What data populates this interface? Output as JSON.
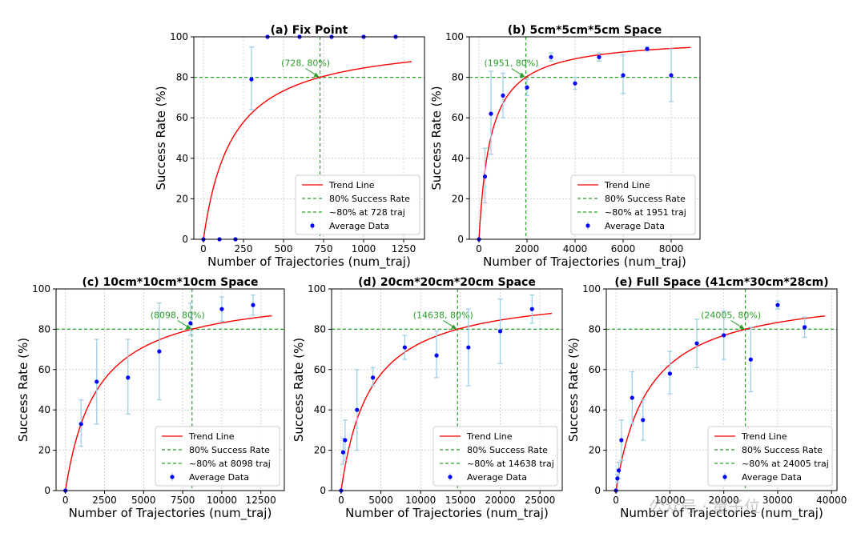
{
  "chart_data": [
    {
      "type": "scatter",
      "title": "(a) Fix Point",
      "xlabel": "Number of Trajectories (num_traj)",
      "ylabel": "Success Rate (%)",
      "xlim": [
        -60,
        1380
      ],
      "ylim": [
        0,
        100
      ],
      "xticks": [
        0,
        250,
        500,
        750,
        1000,
        1250
      ],
      "yticks": [
        0,
        20,
        40,
        60,
        80,
        100
      ],
      "grid": true,
      "legend_position": "lower-right",
      "trend_k": 182,
      "curve_xmax": 1300,
      "threshold_x": 728,
      "threshold_y": 80,
      "annotation": "(728, 80%)",
      "legend": [
        "Trend Line",
        "80% Success Rate",
        "~80% at 728 traj",
        "Average Data"
      ],
      "points": [
        {
          "x": 0,
          "y": 0
        },
        {
          "x": 100,
          "y": 0
        },
        {
          "x": 200,
          "y": 0
        },
        {
          "x": 300,
          "y": 79,
          "err_lo": 15,
          "err_hi": 16
        },
        {
          "x": 400,
          "y": 100
        },
        {
          "x": 600,
          "y": 100
        },
        {
          "x": 800,
          "y": 100
        },
        {
          "x": 1000,
          "y": 100
        },
        {
          "x": 1200,
          "y": 100
        }
      ]
    },
    {
      "type": "scatter",
      "title": "(b) 5cm*5cm*5cm Space",
      "xlabel": "Number of Trajectories (num_traj)",
      "ylabel": "Success Rate (%)",
      "xlim": [
        -400,
        9200
      ],
      "ylim": [
        0,
        100
      ],
      "xticks": [
        0,
        2000,
        4000,
        6000,
        8000
      ],
      "yticks": [
        0,
        20,
        40,
        60,
        80,
        100
      ],
      "grid": true,
      "legend_position": "lower-right",
      "trend_k": 488,
      "curve_xmax": 8800,
      "threshold_x": 1951,
      "threshold_y": 80,
      "annotation": "(1951, 80%)",
      "legend": [
        "Trend Line",
        "80% Success Rate",
        "~80% at 1951 traj",
        "Average Data"
      ],
      "points": [
        {
          "x": 0,
          "y": 0
        },
        {
          "x": 250,
          "y": 31,
          "err_lo": 13,
          "err_hi": 14
        },
        {
          "x": 500,
          "y": 62,
          "err_lo": 20,
          "err_hi": 21
        },
        {
          "x": 1000,
          "y": 71,
          "err_lo": 11,
          "err_hi": 11
        },
        {
          "x": 2000,
          "y": 75,
          "err_lo": 4,
          "err_hi": 4
        },
        {
          "x": 3000,
          "y": 90,
          "err_lo": 2,
          "err_hi": 2
        },
        {
          "x": 4000,
          "y": 77,
          "err_lo": 3,
          "err_hi": 3
        },
        {
          "x": 5000,
          "y": 90,
          "err_lo": 2,
          "err_hi": 2
        },
        {
          "x": 6000,
          "y": 81,
          "err_lo": 9,
          "err_hi": 10
        },
        {
          "x": 7000,
          "y": 94,
          "err_lo": 1,
          "err_hi": 1
        },
        {
          "x": 8000,
          "y": 81,
          "err_lo": 13,
          "err_hi": 13
        }
      ]
    },
    {
      "type": "scatter",
      "title": "(c) 10cm*10cm*10cm Space",
      "xlabel": "Number of Trajectories (num_traj)",
      "ylabel": "Success Rate (%)",
      "xlim": [
        -600,
        14000
      ],
      "ylim": [
        0,
        100
      ],
      "xticks": [
        0,
        2500,
        5000,
        7500,
        10000,
        12500
      ],
      "yticks": [
        0,
        20,
        40,
        60,
        80,
        100
      ],
      "grid": true,
      "legend_position": "lower-right",
      "trend_k": 2024,
      "curve_xmax": 13200,
      "threshold_x": 8098,
      "threshold_y": 80,
      "annotation": "(8098, 80%)",
      "legend": [
        "Trend Line",
        "80% Success Rate",
        "~80% at 8098 traj",
        "Average Data"
      ],
      "points": [
        {
          "x": 0,
          "y": 0
        },
        {
          "x": 1000,
          "y": 33,
          "err_lo": 11,
          "err_hi": 12
        },
        {
          "x": 2000,
          "y": 54,
          "err_lo": 21,
          "err_hi": 21
        },
        {
          "x": 4000,
          "y": 56,
          "err_lo": 18,
          "err_hi": 19
        },
        {
          "x": 6000,
          "y": 69,
          "err_lo": 24,
          "err_hi": 24
        },
        {
          "x": 8000,
          "y": 83,
          "err_lo": 6,
          "err_hi": 10
        },
        {
          "x": 10000,
          "y": 90,
          "err_lo": 6,
          "err_hi": 6
        },
        {
          "x": 12000,
          "y": 92,
          "err_lo": 5,
          "err_hi": 5
        }
      ]
    },
    {
      "type": "scatter",
      "title": "(d) 20cm*20cm*20cm Space",
      "xlabel": "Number of Trajectories (num_traj)",
      "ylabel": "Success Rate (%)",
      "xlim": [
        -1200,
        27800
      ],
      "ylim": [
        0,
        100
      ],
      "xticks": [
        0,
        5000,
        10000,
        15000,
        20000,
        25000
      ],
      "yticks": [
        0,
        20,
        40,
        60,
        80,
        100
      ],
      "grid": true,
      "legend_position": "lower-right",
      "trend_k": 3660,
      "curve_xmax": 26500,
      "threshold_x": 14638,
      "threshold_y": 80,
      "annotation": "(14638, 80%)",
      "legend": [
        "Trend Line",
        "80% Success Rate",
        "~80% at 14638 traj",
        "Average Data"
      ],
      "points": [
        {
          "x": 0,
          "y": 0
        },
        {
          "x": 250,
          "y": 19,
          "err_lo": 6,
          "err_hi": 7
        },
        {
          "x": 500,
          "y": 25,
          "err_lo": 10,
          "err_hi": 10
        },
        {
          "x": 2000,
          "y": 40,
          "err_lo": 20,
          "err_hi": 20
        },
        {
          "x": 4000,
          "y": 56,
          "err_lo": 4,
          "err_hi": 5
        },
        {
          "x": 8000,
          "y": 71,
          "err_lo": 6,
          "err_hi": 6
        },
        {
          "x": 12000,
          "y": 67,
          "err_lo": 11,
          "err_hi": 12
        },
        {
          "x": 16000,
          "y": 71,
          "err_lo": 19,
          "err_hi": 19
        },
        {
          "x": 20000,
          "y": 79,
          "err_lo": 16,
          "err_hi": 16
        },
        {
          "x": 24000,
          "y": 90,
          "err_lo": 7,
          "err_hi": 7
        }
      ]
    },
    {
      "type": "scatter",
      "title": "(e) Full Space (41cm*30cm*28cm)",
      "xlabel": "Number of Trajectories (num_traj)",
      "ylabel": "Success Rate (%)",
      "xlim": [
        -1800,
        41000
      ],
      "ylim": [
        0,
        100
      ],
      "xticks": [
        0,
        10000,
        20000,
        30000,
        40000
      ],
      "yticks": [
        0,
        20,
        40,
        60,
        80,
        100
      ],
      "grid": true,
      "legend_position": "lower-right",
      "trend_k": 6000,
      "curve_xmax": 38800,
      "threshold_x": 24005,
      "threshold_y": 80,
      "annotation": "(24005, 80%)",
      "legend": [
        "Trend Line",
        "80% Success Rate",
        "~80% at 24005 traj",
        "Average Data"
      ],
      "points": [
        {
          "x": 0,
          "y": 0
        },
        {
          "x": 250,
          "y": 6,
          "err_lo": 2,
          "err_hi": 2
        },
        {
          "x": 500,
          "y": 10,
          "err_lo": 4,
          "err_hi": 4
        },
        {
          "x": 1000,
          "y": 25,
          "err_lo": 10,
          "err_hi": 10
        },
        {
          "x": 3000,
          "y": 46,
          "err_lo": 13,
          "err_hi": 13
        },
        {
          "x": 5000,
          "y": 35,
          "err_lo": 10,
          "err_hi": 10
        },
        {
          "x": 10000,
          "y": 58,
          "err_lo": 10,
          "err_hi": 11
        },
        {
          "x": 15000,
          "y": 73,
          "err_lo": 12,
          "err_hi": 12
        },
        {
          "x": 20000,
          "y": 77,
          "err_lo": 12,
          "err_hi": 12
        },
        {
          "x": 25000,
          "y": 65,
          "err_lo": 16,
          "err_hi": 16
        },
        {
          "x": 30000,
          "y": 92,
          "err_lo": 2,
          "err_hi": 2
        },
        {
          "x": 35000,
          "y": 81,
          "err_lo": 5,
          "err_hi": 5
        }
      ]
    }
  ],
  "watermark": "公众号 · 量子位",
  "colors": {
    "trend": "#ff0000",
    "threshold": "#2a9d2a",
    "points": "#0000ff",
    "errorbar": "#9ecfe6",
    "grid": "#c8c8c8"
  }
}
